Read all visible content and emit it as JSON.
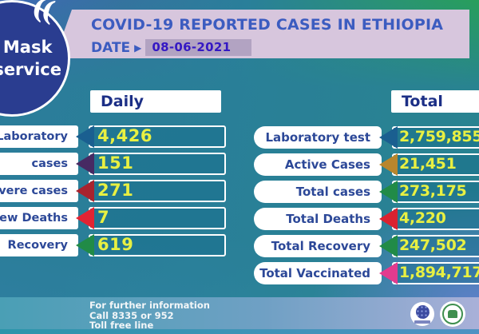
{
  "badge": {
    "line1": "No Mask",
    "line2": "No service",
    "quote_icon": "(("
  },
  "header": {
    "title": "COVID-19 REPORTED CASES IN ETHIOPIA",
    "date_label": "DATE",
    "date_arrow_icon": "▶",
    "date_value": "08-06-2021"
  },
  "daily": {
    "header": "Daily",
    "rows": [
      {
        "label": "Laboratory test",
        "value": "4,426",
        "arrow_color": "#1a5f90"
      },
      {
        "label": "cases",
        "value": "151",
        "arrow_color": "#472a63"
      },
      {
        "label": "severe cases",
        "value": "271",
        "arrow_color": "#a8232e"
      },
      {
        "label": "New Deaths",
        "value": "7",
        "arrow_color": "#e22433"
      },
      {
        "label": "Recovery",
        "value": "619",
        "arrow_color": "#218b47"
      }
    ]
  },
  "total": {
    "header": "Total",
    "rows": [
      {
        "label": "Laboratory test",
        "value": "2,759,855",
        "arrow_color": "#1a5f90"
      },
      {
        "label": "Active Cases",
        "value": "21,451",
        "arrow_color": "#b8862d"
      },
      {
        "label": "Total cases",
        "value": "273,175",
        "arrow_color": "#218b47"
      },
      {
        "label": "Total Deaths",
        "value": "4,220",
        "arrow_color": "#da2230"
      },
      {
        "label": "Total Recovery",
        "value": "247,502",
        "arrow_color": "#218b47"
      },
      {
        "label": "Total Vaccinated",
        "value": "1,894,717",
        "arrow_color": "#e23b8e"
      }
    ]
  },
  "footer": {
    "info_lines": [
      "For further information",
      "Call 8335 or 952",
      "Toll free line"
    ]
  },
  "colors": {
    "header_band": "#d7c6dd",
    "title_text": "#3c5cc0",
    "date_chip_bg": "#b2a3c2",
    "date_chip_text": "#3418c4",
    "label_text": "#2c4898",
    "value_text": "#e8f042",
    "value_box": "#2a7f9a",
    "badge_bg": "#2a3d90",
    "bg_blue": "#3f68b4",
    "bg_green": "#26a54d",
    "bg_teal": "#2a7f9a"
  },
  "chart_data": {
    "type": "table",
    "title": "COVID-19 REPORTED CASES IN ETHIOPIA",
    "date": "08-06-2021",
    "columns": [
      "Daily",
      "Total"
    ],
    "daily": {
      "Laboratory test": 4426,
      "cases": 151,
      "severe cases": 271,
      "New Deaths": 7,
      "Recovery": 619
    },
    "total": {
      "Laboratory test": 2759855,
      "Active Cases": 21451,
      "Total cases": 273175,
      "Total Deaths": 4220,
      "Total Recovery": 247502,
      "Total Vaccinated": 1894717
    }
  }
}
